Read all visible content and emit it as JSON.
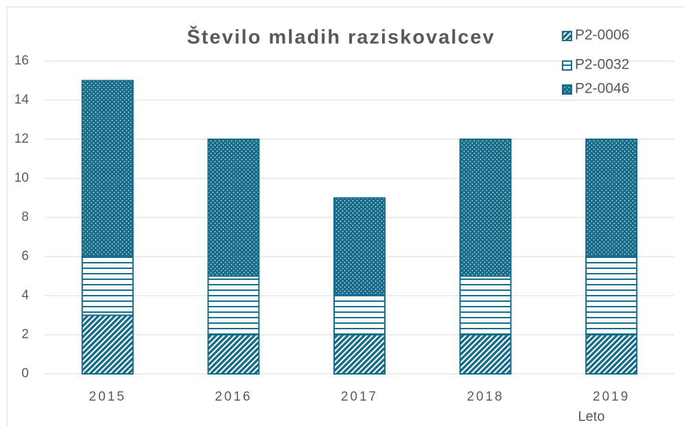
{
  "chart_data": {
    "type": "stacked_bar",
    "title": "Število mladih raziskovalcev",
    "x_label": "Leto",
    "categories": [
      "2015",
      "2016",
      "2017",
      "2018",
      "2019"
    ],
    "series": [
      {
        "name": "P2-0006",
        "color": "#156c8c",
        "values": [
          3,
          2,
          2,
          2,
          2
        ]
      },
      {
        "name": "P2-0032",
        "color": "#156c8c",
        "values": [
          3,
          3,
          2,
          3,
          4
        ]
      },
      {
        "name": "P2-0046",
        "color": "#156c8c",
        "values": [
          9,
          7,
          5,
          7,
          6
        ]
      }
    ],
    "ylim": [
      0,
      16
    ],
    "yticks": [
      0,
      2,
      4,
      6,
      8,
      10,
      12,
      14,
      16
    ],
    "grid": true,
    "legend": "top-right"
  }
}
